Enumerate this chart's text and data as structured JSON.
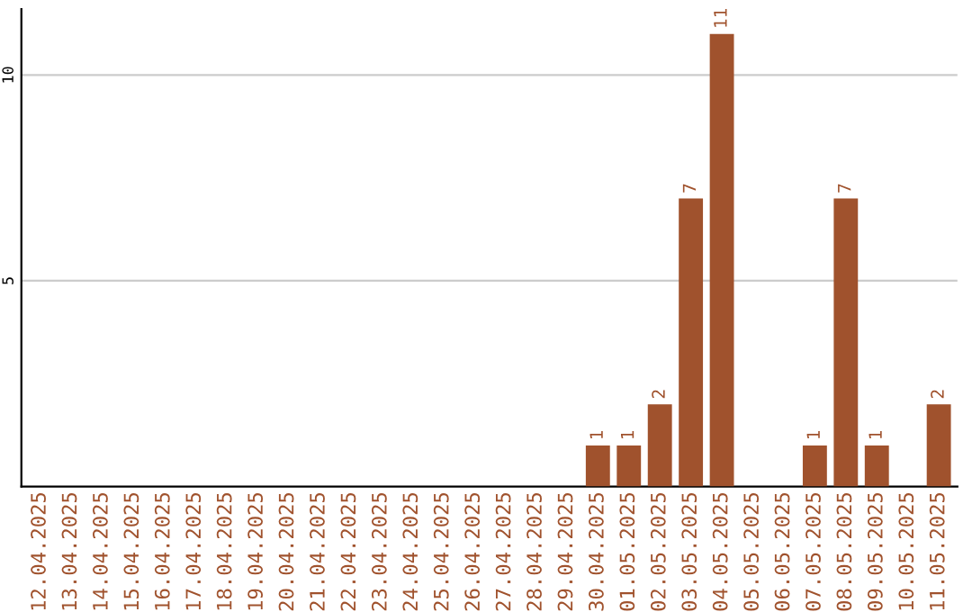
{
  "chart_data": {
    "type": "bar",
    "categories": [
      "12.04.2025",
      "13.04.2025",
      "14.04.2025",
      "15.04.2025",
      "16.04.2025",
      "17.04.2025",
      "18.04.2025",
      "19.04.2025",
      "20.04.2025",
      "21.04.2025",
      "22.04.2025",
      "23.04.2025",
      "24.04.2025",
      "25.04.2025",
      "26.04.2025",
      "27.04.2025",
      "28.04.2025",
      "29.04.2025",
      "30.04.2025",
      "01.05.2025",
      "02.05.2025",
      "03.05.2025",
      "04.05.2025",
      "05.05.2025",
      "06.05.2025",
      "07.05.2025",
      "08.05.2025",
      "09.05.2025",
      "10.05.2025",
      "11.05.2025"
    ],
    "values": [
      0,
      0,
      0,
      0,
      0,
      0,
      0,
      0,
      0,
      0,
      0,
      0,
      0,
      0,
      0,
      0,
      0,
      0,
      1,
      1,
      2,
      7,
      11,
      0,
      0,
      1,
      7,
      1,
      0,
      2
    ],
    "value_labels": [
      null,
      null,
      null,
      null,
      null,
      null,
      null,
      null,
      null,
      null,
      null,
      null,
      null,
      null,
      null,
      null,
      null,
      null,
      "1",
      "1",
      "2",
      "7",
      "11",
      null,
      null,
      "1",
      "7",
      "1",
      null,
      "2"
    ],
    "color": "#a0522d",
    "ylim": [
      0,
      11.6
    ],
    "yticks": [
      5,
      10
    ],
    "grid": "y"
  }
}
